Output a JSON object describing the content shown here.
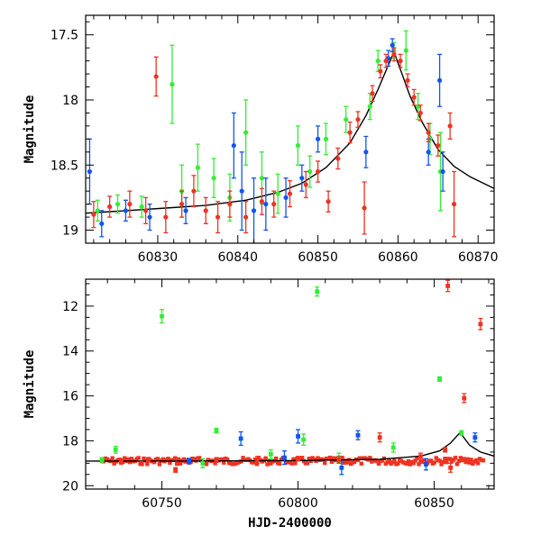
{
  "chart_data": [
    {
      "type": "scatter",
      "panel": "top",
      "xlabel": "",
      "ylabel": "Magnitude",
      "xlim": [
        60821,
        60872
      ],
      "ylim": [
        19.1,
        17.35
      ],
      "y_inverted": true,
      "xticks": [
        60830,
        60840,
        60850,
        60860,
        60870
      ],
      "yticks": [
        17.5,
        18,
        18.5,
        19
      ],
      "colors": {
        "green": "#33ee33",
        "blue": "#1155ee",
        "red": "#ee3322",
        "model": "#000000"
      },
      "model_curve": {
        "x": [
          60821,
          60826,
          60831,
          60836,
          60841,
          60845,
          60848,
          60851,
          60854,
          60856,
          60857.5,
          60859.5,
          60861.5,
          60863,
          60865,
          60867,
          60869,
          60872
        ],
        "y": [
          18.87,
          18.85,
          18.83,
          18.81,
          18.77,
          18.71,
          18.64,
          18.52,
          18.33,
          18.12,
          17.92,
          17.63,
          17.97,
          18.17,
          18.38,
          18.51,
          18.59,
          18.68
        ]
      },
      "series": [
        {
          "name": "",
          "color": "green",
          "points": [
            {
              "x": 60822.5,
              "y": 18.85,
              "err": 0.08
            },
            {
              "x": 60825,
              "y": 18.8,
              "err": 0.07
            },
            {
              "x": 60828,
              "y": 18.82,
              "err": 0.08
            },
            {
              "x": 60831.8,
              "y": 17.88,
              "err": 0.3
            },
            {
              "x": 60833,
              "y": 18.7,
              "err": 0.2
            },
            {
              "x": 60835,
              "y": 18.52,
              "err": 0.18
            },
            {
              "x": 60837,
              "y": 18.6,
              "err": 0.15
            },
            {
              "x": 60839,
              "y": 18.75,
              "err": 0.18
            },
            {
              "x": 60841,
              "y": 18.25,
              "err": 0.25
            },
            {
              "x": 60843,
              "y": 18.6,
              "err": 0.2
            },
            {
              "x": 60845,
              "y": 18.72,
              "err": 0.15
            },
            {
              "x": 60847.5,
              "y": 18.35,
              "err": 0.15
            },
            {
              "x": 60849,
              "y": 18.55,
              "err": 0.12
            },
            {
              "x": 60851,
              "y": 18.3,
              "err": 0.12
            },
            {
              "x": 60853.5,
              "y": 18.15,
              "err": 0.1
            },
            {
              "x": 60856.5,
              "y": 18.05,
              "err": 0.1
            },
            {
              "x": 60857.5,
              "y": 17.7,
              "err": 0.08
            },
            {
              "x": 60859.5,
              "y": 17.62,
              "err": 0.06
            },
            {
              "x": 60861,
              "y": 17.62,
              "err": 0.15
            },
            {
              "x": 60862.5,
              "y": 18.05,
              "err": 0.1
            },
            {
              "x": 60864,
              "y": 18.3,
              "err": 0.12
            },
            {
              "x": 60865.3,
              "y": 18.55,
              "err": 0.3
            }
          ]
        },
        {
          "name": "",
          "color": "blue",
          "points": [
            {
              "x": 60821.5,
              "y": 18.55,
              "err": 0.25
            },
            {
              "x": 60823,
              "y": 18.95,
              "err": 0.1
            },
            {
              "x": 60826,
              "y": 18.85,
              "err": 0.08
            },
            {
              "x": 60829,
              "y": 18.9,
              "err": 0.1
            },
            {
              "x": 60833.5,
              "y": 18.85,
              "err": 0.1
            },
            {
              "x": 60839.5,
              "y": 18.35,
              "err": 0.25
            },
            {
              "x": 60840.5,
              "y": 18.7,
              "err": 0.3
            },
            {
              "x": 60842,
              "y": 18.85,
              "err": 0.25
            },
            {
              "x": 60843.5,
              "y": 18.8,
              "err": 0.2
            },
            {
              "x": 60846,
              "y": 18.75,
              "err": 0.15
            },
            {
              "x": 60848,
              "y": 18.6,
              "err": 0.1
            },
            {
              "x": 60850,
              "y": 18.3,
              "err": 0.1
            },
            {
              "x": 60856,
              "y": 18.4,
              "err": 0.12
            },
            {
              "x": 60858.8,
              "y": 17.68,
              "err": 0.06
            },
            {
              "x": 60859.3,
              "y": 17.58,
              "err": 0.05
            },
            {
              "x": 60863.8,
              "y": 18.4,
              "err": 0.1
            },
            {
              "x": 60865.2,
              "y": 17.85,
              "err": 0.2
            },
            {
              "x": 60865.6,
              "y": 18.55,
              "err": 0.15
            }
          ]
        },
        {
          "name": "",
          "color": "red",
          "points": [
            {
              "x": 60822,
              "y": 18.88,
              "err": 0.1
            },
            {
              "x": 60824,
              "y": 18.82,
              "err": 0.08
            },
            {
              "x": 60826.5,
              "y": 18.8,
              "err": 0.1
            },
            {
              "x": 60828.5,
              "y": 18.85,
              "err": 0.1
            },
            {
              "x": 60829.8,
              "y": 17.82,
              "err": 0.15
            },
            {
              "x": 60831,
              "y": 18.9,
              "err": 0.12
            },
            {
              "x": 60833,
              "y": 18.8,
              "err": 0.1
            },
            {
              "x": 60834.5,
              "y": 18.7,
              "err": 0.12
            },
            {
              "x": 60836,
              "y": 18.85,
              "err": 0.1
            },
            {
              "x": 60837.5,
              "y": 18.9,
              "err": 0.12
            },
            {
              "x": 60839,
              "y": 18.8,
              "err": 0.1
            },
            {
              "x": 60841,
              "y": 18.9,
              "err": 0.12
            },
            {
              "x": 60843,
              "y": 18.78,
              "err": 0.1
            },
            {
              "x": 60844.5,
              "y": 18.8,
              "err": 0.1
            },
            {
              "x": 60846.5,
              "y": 18.72,
              "err": 0.1
            },
            {
              "x": 60848.5,
              "y": 18.65,
              "err": 0.1
            },
            {
              "x": 60850,
              "y": 18.55,
              "err": 0.08
            },
            {
              "x": 60851.3,
              "y": 18.78,
              "err": 0.08
            },
            {
              "x": 60852.5,
              "y": 18.45,
              "err": 0.08
            },
            {
              "x": 60854,
              "y": 18.25,
              "err": 0.08
            },
            {
              "x": 60855,
              "y": 18.15,
              "err": 0.06
            },
            {
              "x": 60855.8,
              "y": 18.83,
              "err": 0.2
            },
            {
              "x": 60856.8,
              "y": 17.95,
              "err": 0.06
            },
            {
              "x": 60857.8,
              "y": 17.78,
              "err": 0.05
            },
            {
              "x": 60858.5,
              "y": 17.7,
              "err": 0.05
            },
            {
              "x": 60859.5,
              "y": 17.65,
              "err": 0.05
            },
            {
              "x": 60860.3,
              "y": 17.7,
              "err": 0.05
            },
            {
              "x": 60861.2,
              "y": 17.85,
              "err": 0.05
            },
            {
              "x": 60862,
              "y": 17.98,
              "err": 0.06
            },
            {
              "x": 60862.8,
              "y": 18.1,
              "err": 0.06
            },
            {
              "x": 60863.8,
              "y": 18.25,
              "err": 0.07
            },
            {
              "x": 60865,
              "y": 18.35,
              "err": 0.08
            },
            {
              "x": 60866.5,
              "y": 18.2,
              "err": 0.1
            },
            {
              "x": 60867,
              "y": 18.8,
              "err": 0.25
            }
          ]
        }
      ]
    },
    {
      "type": "scatter",
      "panel": "bottom",
      "xlabel": "HJD-2400000",
      "ylabel": "Magnitude",
      "xlim": [
        60722,
        60872
      ],
      "ylim": [
        20.15,
        10.8
      ],
      "y_inverted": true,
      "xticks": [
        60750,
        60800,
        60850
      ],
      "yticks": [
        12,
        14,
        16,
        18,
        20
      ],
      "colors": {
        "green": "#33ee33",
        "blue": "#1155ee",
        "red": "#ee3322",
        "model": "#000000"
      },
      "model_curve": {
        "x": [
          60722,
          60760,
          60800,
          60830,
          60845,
          60852,
          60856,
          60859.5,
          60863,
          60867,
          60872
        ],
        "y": [
          18.9,
          18.9,
          18.88,
          18.82,
          18.68,
          18.45,
          18.1,
          17.63,
          18.2,
          18.5,
          18.68
        ]
      },
      "series": [
        {
          "name": "",
          "color": "green",
          "points": [
            {
              "x": 60728,
              "y": 18.85,
              "err": 0.1
            },
            {
              "x": 60733,
              "y": 18.4,
              "err": 0.15
            },
            {
              "x": 60750,
              "y": 12.45,
              "err": 0.3
            },
            {
              "x": 60765,
              "y": 19.0,
              "err": 0.2
            },
            {
              "x": 60770,
              "y": 17.55,
              "err": 0.1
            },
            {
              "x": 60790,
              "y": 18.6,
              "err": 0.2
            },
            {
              "x": 60802,
              "y": 17.95,
              "err": 0.25
            },
            {
              "x": 60807,
              "y": 11.35,
              "err": 0.2
            },
            {
              "x": 60815,
              "y": 18.75,
              "err": 0.2
            },
            {
              "x": 60835,
              "y": 18.3,
              "err": 0.2
            },
            {
              "x": 60852,
              "y": 15.25,
              "err": 0.1
            },
            {
              "x": 60860,
              "y": 17.65,
              "err": 0.1
            }
          ]
        },
        {
          "name": "",
          "color": "blue",
          "points": [
            {
              "x": 60760,
              "y": 18.9,
              "err": 0.12
            },
            {
              "x": 60779,
              "y": 17.9,
              "err": 0.3
            },
            {
              "x": 60795,
              "y": 18.75,
              "err": 0.3
            },
            {
              "x": 60800,
              "y": 17.8,
              "err": 0.3
            },
            {
              "x": 60816,
              "y": 19.2,
              "err": 0.3
            },
            {
              "x": 60822,
              "y": 17.75,
              "err": 0.2
            },
            {
              "x": 60847,
              "y": 19.05,
              "err": 0.25
            },
            {
              "x": 60865,
              "y": 17.85,
              "err": 0.2
            }
          ]
        },
        {
          "name": "",
          "color": "red",
          "points": [
            {
              "x": 60735,
              "y": 18.9,
              "err": 0.1
            },
            {
              "x": 60745,
              "y": 18.85,
              "err": 0.1
            },
            {
              "x": 60755,
              "y": 19.3,
              "err": 0.1
            },
            {
              "x": 60770,
              "y": 18.85,
              "err": 0.1
            },
            {
              "x": 60785,
              "y": 18.85,
              "err": 0.15
            },
            {
              "x": 60800,
              "y": 18.8,
              "err": 0.1
            },
            {
              "x": 60815,
              "y": 18.85,
              "err": 0.15
            },
            {
              "x": 60830,
              "y": 17.85,
              "err": 0.2
            },
            {
              "x": 60845,
              "y": 18.7,
              "err": 0.15
            },
            {
              "x": 60854,
              "y": 18.4,
              "err": 0.1
            },
            {
              "x": 60855,
              "y": 11.1,
              "err": 0.25
            },
            {
              "x": 60856,
              "y": 19.2,
              "err": 0.2
            },
            {
              "x": 60861,
              "y": 16.1,
              "err": 0.2
            },
            {
              "x": 60867,
              "y": 12.8,
              "err": 0.25
            }
          ],
          "dense_band": {
            "x_start": 60728,
            "x_end": 60868,
            "level": 18.9,
            "spread": 0.15
          }
        }
      ]
    }
  ]
}
